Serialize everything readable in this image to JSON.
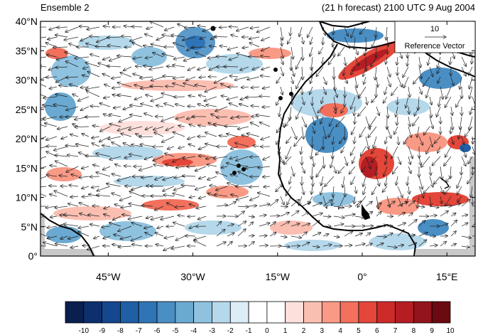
{
  "title_left": "Ensemble 2",
  "title_right": "(21 h forecast) 2100 UTC 9 Aug 2004",
  "map": {
    "lat_range": [
      0,
      40
    ],
    "lon_range": [
      -57,
      20
    ],
    "lat_ticks": [
      {
        "value": 0,
        "label": "0°"
      },
      {
        "value": 5,
        "label": "5°N"
      },
      {
        "value": 10,
        "label": "10°N"
      },
      {
        "value": 15,
        "label": "15°N"
      },
      {
        "value": 20,
        "label": "20°N"
      },
      {
        "value": 25,
        "label": "25°N"
      },
      {
        "value": 30,
        "label": "30°N"
      },
      {
        "value": 35,
        "label": "35°N"
      },
      {
        "value": 40,
        "label": "40°N"
      }
    ],
    "lon_ticks": [
      {
        "value": -45,
        "label": "45°W"
      },
      {
        "value": -30,
        "label": "30°W"
      },
      {
        "value": -15,
        "label": "15°W"
      },
      {
        "value": 0,
        "label": "0°"
      },
      {
        "value": 15,
        "label": "15°E"
      }
    ]
  },
  "reference_vector": {
    "value": "10",
    "label": "Reference Vector"
  },
  "colorbar": {
    "labels": [
      "-10",
      "-9",
      "-8",
      "-7",
      "-6",
      "-5",
      "-4",
      "-3",
      "-2",
      "-1",
      "0",
      "1",
      "2",
      "3",
      "4",
      "5",
      "6",
      "7",
      "8",
      "9",
      "10"
    ],
    "colors": [
      "#0a1f4d",
      "#0d2f6e",
      "#15478e",
      "#1f5fa6",
      "#2f74b6",
      "#4a8fc4",
      "#6aa9d2",
      "#8fc2df",
      "#b5d8eb",
      "#dcedf8",
      "#ffffff",
      "#ffffff",
      "#fde0dc",
      "#fbbfb2",
      "#f89a86",
      "#f2705c",
      "#e4463a",
      "#cd2a2a",
      "#b41e23",
      "#93141c",
      "#6b0a10"
    ]
  }
}
